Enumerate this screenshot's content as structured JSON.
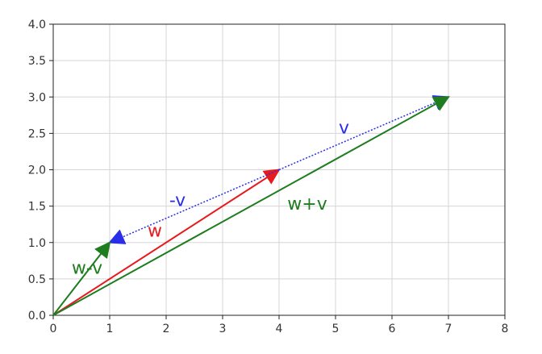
{
  "chart_data": {
    "type": "vector-plot",
    "title": "",
    "xlabel": "",
    "ylabel": "",
    "xlim": [
      0,
      8
    ],
    "ylim": [
      0,
      4
    ],
    "x_ticks": [
      0,
      1,
      2,
      3,
      4,
      5,
      6,
      7,
      8
    ],
    "x_tick_labels": [
      "0",
      "1",
      "2",
      "3",
      "4",
      "5",
      "6",
      "7",
      "8"
    ],
    "y_ticks": [
      0,
      0.5,
      1,
      1.5,
      2,
      2.5,
      3,
      3.5,
      4
    ],
    "y_tick_labels": [
      "0.0",
      "0.5",
      "1.0",
      "1.5",
      "2.0",
      "2.5",
      "3.0",
      "3.5",
      "4.0"
    ],
    "grid": true,
    "vectors": [
      {
        "id": "w",
        "label": "w",
        "start": [
          0,
          0
        ],
        "end": [
          4,
          2
        ],
        "color": "#e8191c",
        "style": "solid",
        "label_at": [
          1.8,
          1.08
        ]
      },
      {
        "id": "v",
        "label": "v",
        "start": [
          4,
          2
        ],
        "end": [
          7,
          3
        ],
        "color": "#2a2ee8",
        "style": "dotted",
        "label_at": [
          5.15,
          2.5
        ]
      },
      {
        "id": "neg-v",
        "label": "-v",
        "start": [
          4,
          2
        ],
        "end": [
          1,
          1
        ],
        "color": "#2a2ee8",
        "style": "dotted",
        "label_at": [
          2.2,
          1.5
        ]
      },
      {
        "id": "w-plus-v",
        "label": "w+v",
        "start": [
          0,
          0
        ],
        "end": [
          7,
          3
        ],
        "color": "#1e7d1e",
        "style": "solid",
        "label_at": [
          4.5,
          1.45
        ]
      },
      {
        "id": "w-minus-v",
        "label": "w-v",
        "start": [
          0,
          0
        ],
        "end": [
          1,
          1
        ],
        "color": "#1e7d1e",
        "style": "solid",
        "label_at": [
          0.6,
          0.57
        ]
      }
    ]
  }
}
